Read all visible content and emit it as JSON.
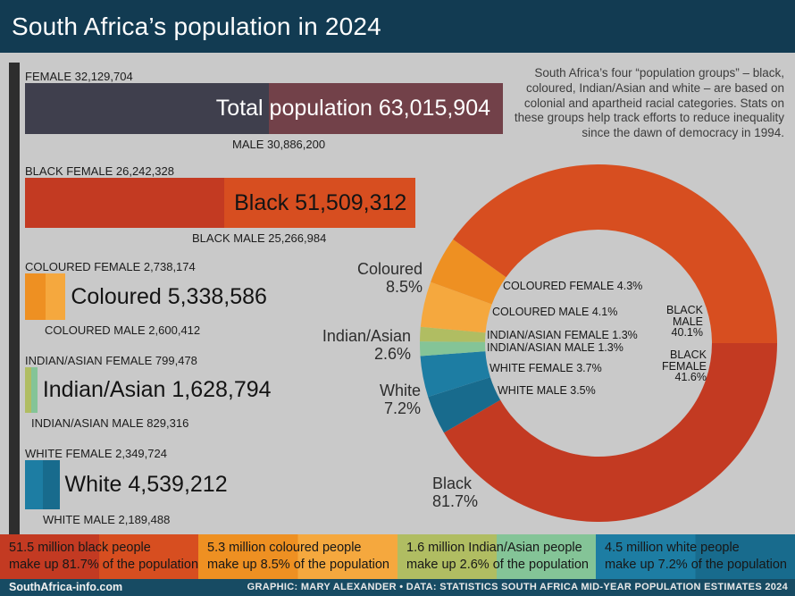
{
  "header": {
    "title": "South Africa’s population in 2024"
  },
  "intro": {
    "text": "South Africa’s four “population groups” – black, coloured, Indian/Asian and white – are based on colonial and apartheid racial categories. Stats on these groups help track efforts to reduce inequality since the dawn of democracy in 1994."
  },
  "colors": {
    "background": "#c9c9c9",
    "header_bg": "#123b52",
    "footer_bg": "#174b63",
    "strip": "#2e2e2e",
    "total_female": "#3f3f4d",
    "total_male": "#724149",
    "black_female": "#c33a22",
    "black_male": "#d74e20",
    "coloured_female": "#ee9022",
    "coloured_male": "#f5a83e",
    "indian_female": "#b0bd62",
    "indian_male": "#84c497",
    "white_female": "#1d7da3",
    "white_male": "#186b8d"
  },
  "chart_data": {
    "bar_chart": {
      "type": "bar",
      "orientation": "horizontal",
      "unit": "people",
      "scale_total": 63015904,
      "groups": [
        {
          "name": "Total",
          "female": 32129704,
          "male": 30886200,
          "total": 63015904,
          "female_label": "FEMALE 32,129,704",
          "male_label": "MALE 30,886,200",
          "bar_label": "Total population 63,015,904",
          "female_color": "#3f3f4d",
          "male_color": "#724149"
        },
        {
          "name": "Black",
          "female": 26242328,
          "male": 25266984,
          "total": 51509312,
          "female_label": "BLACK FEMALE 26,242,328",
          "male_label": "BLACK MALE 25,266,984",
          "bar_label": "Black 51,509,312",
          "female_color": "#c33a22",
          "male_color": "#d74e20"
        },
        {
          "name": "Coloured",
          "female": 2738174,
          "male": 2600412,
          "total": 5338586,
          "female_label": "COLOURED FEMALE 2,738,174",
          "male_label": "COLOURED MALE 2,600,412",
          "bar_label": "Coloured 5,338,586",
          "female_color": "#ee9022",
          "male_color": "#f5a83e"
        },
        {
          "name": "Indian/Asian",
          "female": 799478,
          "male": 829316,
          "total": 1628794,
          "female_label": "INDIAN/ASIAN FEMALE 799,478",
          "male_label": "INDIAN/ASIAN MALE 829,316",
          "bar_label": "Indian/Asian 1,628,794",
          "female_color": "#b0bd62",
          "male_color": "#84c497"
        },
        {
          "name": "White",
          "female": 2349724,
          "male": 2189488,
          "total": 4539212,
          "female_label": "WHITE FEMALE 2,349,724",
          "male_label": "WHITE MALE 2,189,488",
          "bar_label": "White 4,539,212",
          "female_color": "#1d7da3",
          "male_color": "#186b8d"
        }
      ]
    },
    "donut_chart": {
      "type": "pie",
      "start_angle_deg_clockwise_from_top": 90,
      "segments": [
        {
          "label": "BLACK FEMALE",
          "pct": 41.6,
          "color": "#c33a22"
        },
        {
          "label": "WHITE MALE",
          "pct": 3.5,
          "color": "#186b8d"
        },
        {
          "label": "WHITE FEMALE",
          "pct": 3.7,
          "color": "#1d7da3"
        },
        {
          "label": "INDIAN/ASIAN MALE",
          "pct": 1.3,
          "color": "#84c497"
        },
        {
          "label": "INDIAN/ASIAN FEMALE",
          "pct": 1.3,
          "color": "#b0bd62"
        },
        {
          "label": "COLOURED MALE",
          "pct": 4.1,
          "color": "#f5a83e"
        },
        {
          "label": "COLOURED FEMALE",
          "pct": 4.3,
          "color": "#ee9022"
        },
        {
          "label": "BLACK MALE",
          "pct": 40.1,
          "color": "#d74e20"
        }
      ],
      "inner_labels": {
        "coloured_female": "COLOURED FEMALE 4.3%",
        "coloured_male": "COLOURED MALE 4.1%",
        "indian_female": "INDIAN/ASIAN FEMALE 1.3%",
        "indian_male": "INDIAN/ASIAN MALE 1.3%",
        "white_female": "WHITE FEMALE 3.7%",
        "white_male": "WHITE MALE 3.5%",
        "black_male": "BLACK\nMALE\n40.1%",
        "black_female": "BLACK\nFEMALE\n41.6%"
      },
      "group_callouts": {
        "coloured": "Coloured\n8.5%",
        "indian": "Indian/Asian\n2.6%",
        "white": "White\n7.2%",
        "black": "Black\n81.7%"
      }
    }
  },
  "legend": {
    "boxes": [
      {
        "line1": "51.5 million black people",
        "line2": "make up 81.7% of the population",
        "left_color": "#c33a22",
        "right_color": "#d74e20"
      },
      {
        "line1": "5.3 million coloured people",
        "line2": "make up 8.5% of the population",
        "left_color": "#ee9022",
        "right_color": "#f5a83e"
      },
      {
        "line1": "1.6 million Indian/Asian people",
        "line2": "make up 2.6% of the population",
        "left_color": "#b0bd62",
        "right_color": "#84c497"
      },
      {
        "line1": "4.5 million white people",
        "line2": "make up 7.2% of the population",
        "left_color": "#1d7da3",
        "right_color": "#186b8d"
      }
    ]
  },
  "footer": {
    "site": "SouthAfrica-info.com",
    "credit": "GRAPHIC: MARY ALEXANDER • DATA: STATISTICS SOUTH AFRICA MID-YEAR POPULATION ESTIMATES 2024"
  }
}
